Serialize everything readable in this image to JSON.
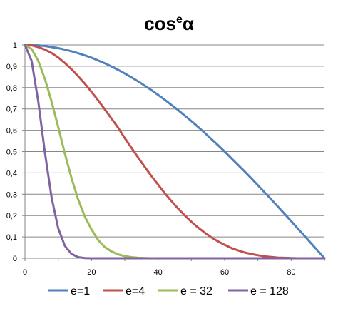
{
  "chart_data": {
    "type": "line",
    "title": {
      "base": "cos",
      "superscript": "e",
      "suffix": "α"
    },
    "xlabel": "",
    "ylabel": "",
    "xlim": [
      0,
      90
    ],
    "ylim": [
      0,
      1
    ],
    "x_ticks": [
      0,
      20,
      40,
      60,
      80
    ],
    "y_ticks": [
      0,
      0.1,
      0.2,
      0.3,
      0.4,
      0.5,
      0.6,
      0.7,
      0.8,
      0.9,
      1
    ],
    "y_tick_labels": [
      "0",
      "0,1",
      "0,2",
      "0,3",
      "0,4",
      "0,5",
      "0,6",
      "0,7",
      "0,8",
      "0,9",
      "1"
    ],
    "x_tick_labels": [
      "0",
      "20",
      "40",
      "60",
      "80"
    ],
    "grid": "horizontal",
    "legend_position": "bottom",
    "x": [
      0,
      2,
      4,
      6,
      8,
      10,
      12,
      14,
      16,
      18,
      20,
      22,
      24,
      26,
      28,
      30,
      32,
      34,
      36,
      38,
      40,
      42,
      44,
      46,
      48,
      50,
      52,
      54,
      56,
      58,
      60,
      62,
      64,
      66,
      68,
      70,
      72,
      74,
      76,
      78,
      80,
      82,
      84,
      86,
      88,
      90
    ],
    "series": [
      {
        "name": "e=1",
        "color": "#4F81BD",
        "values": [
          1,
          0.999,
          0.998,
          0.995,
          0.99,
          0.985,
          0.978,
          0.97,
          0.961,
          0.951,
          0.94,
          0.927,
          0.914,
          0.899,
          0.883,
          0.866,
          0.848,
          0.829,
          0.809,
          0.788,
          0.766,
          0.743,
          0.719,
          0.695,
          0.669,
          0.643,
          0.616,
          0.588,
          0.559,
          0.53,
          0.5,
          0.469,
          0.438,
          0.407,
          0.375,
          0.342,
          0.309,
          0.276,
          0.242,
          0.208,
          0.174,
          0.139,
          0.105,
          0.07,
          0.035,
          0
        ]
      },
      {
        "name": "e=4",
        "color": "#C0504D",
        "values": [
          1,
          0.998,
          0.99,
          0.978,
          0.962,
          0.941,
          0.915,
          0.886,
          0.853,
          0.818,
          0.78,
          0.74,
          0.698,
          0.655,
          0.612,
          0.563,
          0.518,
          0.472,
          0.428,
          0.385,
          0.345,
          0.305,
          0.268,
          0.233,
          0.201,
          0.171,
          0.144,
          0.12,
          0.098,
          0.079,
          0.063,
          0.048,
          0.037,
          0.027,
          0.02,
          0.014,
          0.009,
          0.006,
          0.003,
          0.002,
          0.001,
          0,
          0,
          0,
          0,
          0
        ]
      },
      {
        "name": "e = 32",
        "color": "#9BBB59",
        "values": [
          1,
          0.981,
          0.925,
          0.84,
          0.735,
          0.615,
          0.49,
          0.375,
          0.275,
          0.195,
          0.135,
          0.085,
          0.052,
          0.032,
          0.018,
          0.01,
          0.005,
          0.002,
          0.001,
          0,
          0,
          0,
          0,
          0,
          0,
          0,
          0,
          0,
          0,
          0,
          0,
          0,
          0,
          0,
          0,
          0,
          0,
          0,
          0,
          0,
          0,
          0,
          0,
          0,
          0,
          0
        ]
      },
      {
        "name": "e = 128",
        "color": "#8064A2",
        "values": [
          1,
          0.925,
          0.735,
          0.495,
          0.285,
          0.14,
          0.058,
          0.02,
          0.005,
          0.001,
          0,
          0,
          0,
          0,
          0,
          0,
          0,
          0,
          0,
          0,
          0,
          0,
          0,
          0,
          0,
          0,
          0,
          0,
          0,
          0,
          0,
          0,
          0,
          0,
          0,
          0,
          0,
          0,
          0,
          0,
          0,
          0,
          0,
          0,
          0,
          0
        ]
      }
    ]
  }
}
